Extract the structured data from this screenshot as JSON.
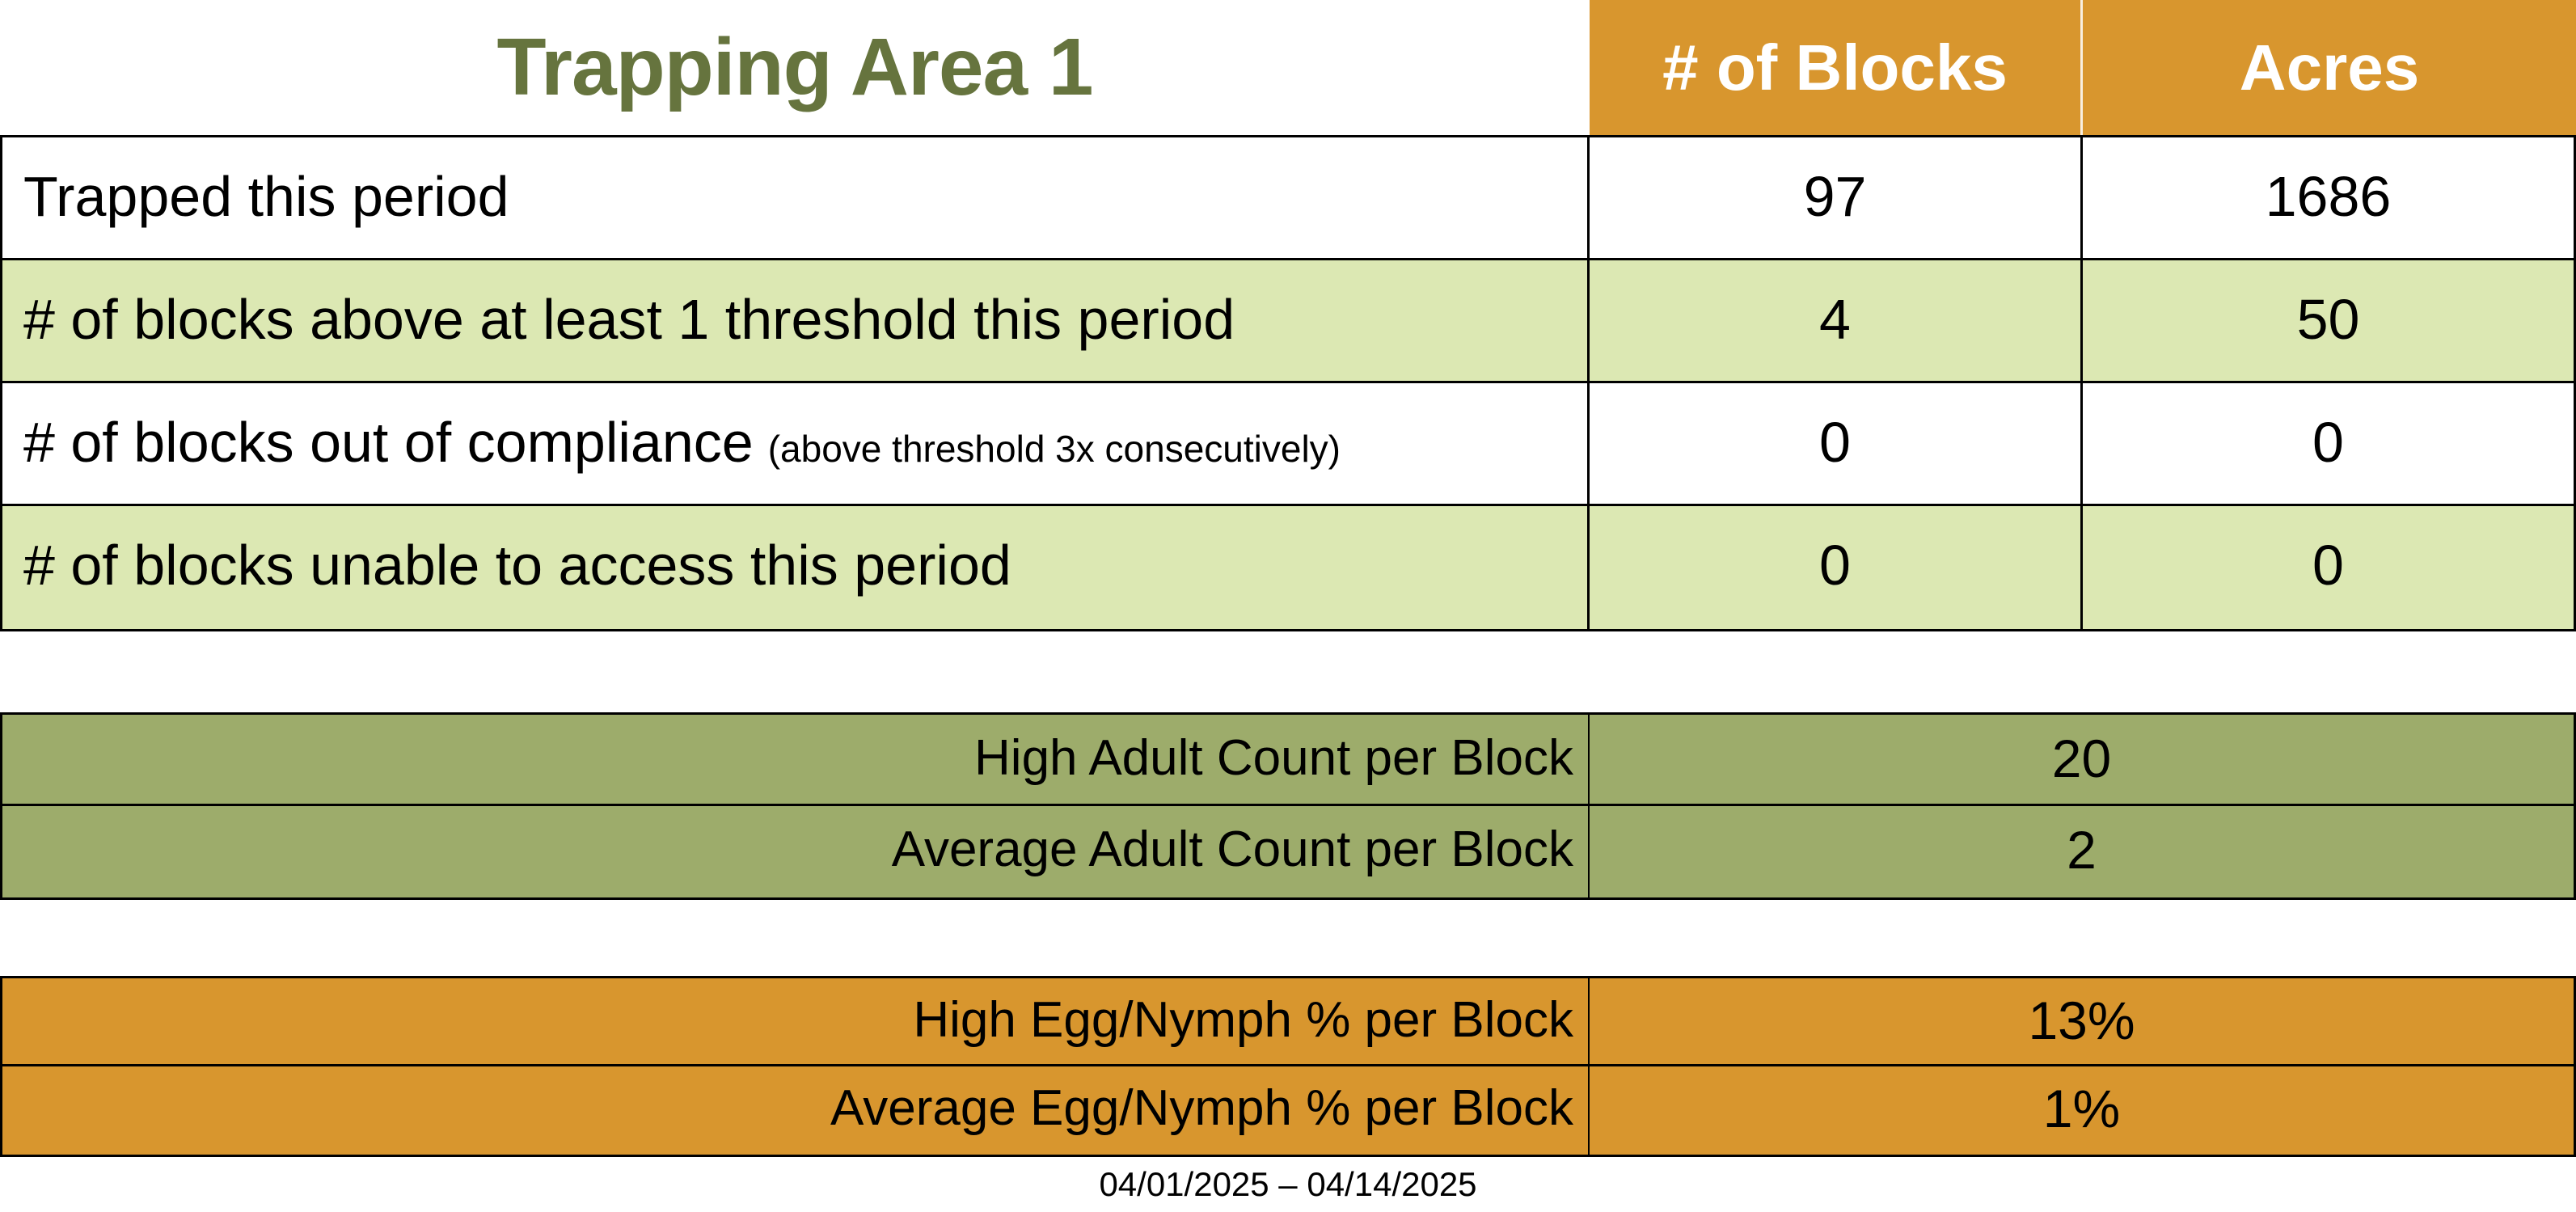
{
  "title": "Trapping Area 1",
  "colors": {
    "orange": "#D8962E",
    "light_green": "#DCE8B3",
    "olive": "#9DAC6B",
    "title_green": "#66743E"
  },
  "header": {
    "col_blocks": "# of Blocks",
    "col_acres": "Acres"
  },
  "main_table": {
    "rows": [
      {
        "label": "Trapped this period",
        "note": "",
        "blocks": "97",
        "acres": "1686"
      },
      {
        "label": "# of blocks above at least 1 threshold this period",
        "note": "",
        "blocks": "4",
        "acres": "50"
      },
      {
        "label": "# of blocks out of compliance",
        "note": "(above threshold 3x consecutively)",
        "blocks": "0",
        "acres": "0"
      },
      {
        "label": "# of blocks unable to access this period",
        "note": "",
        "blocks": "0",
        "acres": "0"
      }
    ]
  },
  "adult_section": {
    "rows": [
      {
        "label": "High Adult Count per Block",
        "value": "20"
      },
      {
        "label": "Average Adult Count per Block",
        "value": "2"
      }
    ]
  },
  "egg_section": {
    "rows": [
      {
        "label": "High Egg/Nymph % per Block",
        "value": "13%"
      },
      {
        "label": "Average Egg/Nymph % per Block",
        "value": "1%"
      }
    ]
  },
  "footer": {
    "date_range": "04/01/2025 – 04/14/2025"
  }
}
